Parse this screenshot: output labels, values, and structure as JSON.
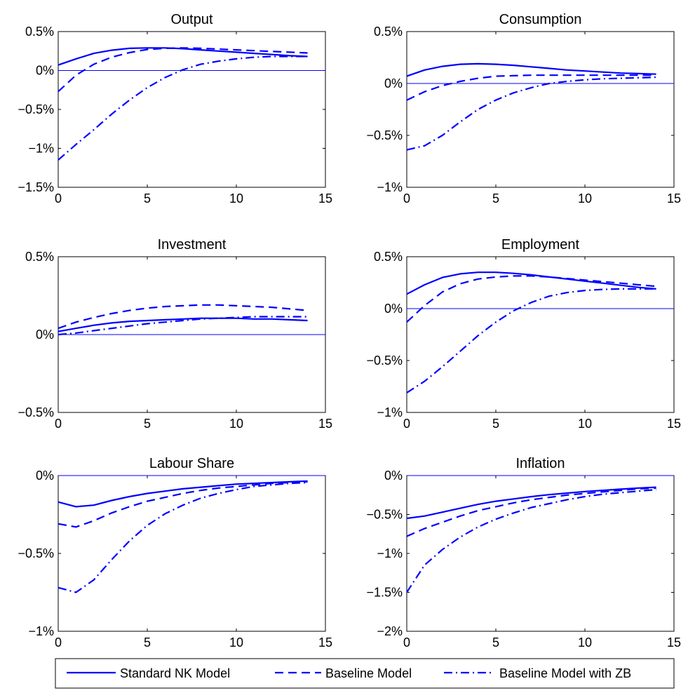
{
  "colors": {
    "series": "#0000ff",
    "axis": "#000000",
    "zero_line": "#0000ff",
    "background": "#ffffff"
  },
  "legend": {
    "placement": "bottom",
    "items": [
      {
        "label": "Standard NK Model",
        "style": "solid"
      },
      {
        "label": "Baseline Model",
        "style": "dashed"
      },
      {
        "label": "Baseline Model with ZB",
        "style": "dashdot"
      }
    ]
  },
  "chart_data": [
    {
      "type": "line",
      "title": "Output",
      "xlim": [
        0,
        15
      ],
      "ylim": [
        -1.5,
        0.5
      ],
      "xticks": [
        0,
        5,
        10,
        15
      ],
      "xtick_labels": [
        "0",
        "5",
        "10",
        "15"
      ],
      "yticks": [
        -1.5,
        -1,
        -0.5,
        0,
        0.5
      ],
      "ytick_labels": [
        "−1.5%",
        "−1%",
        "−0.5%",
        "0%",
        "0.5%"
      ],
      "zero_line": true,
      "x": [
        0,
        1,
        2,
        3,
        4,
        5,
        6,
        7,
        8,
        9,
        10,
        11,
        12,
        13,
        14
      ],
      "series": [
        {
          "name": "Standard NK Model",
          "style": "solid",
          "values": [
            0.07,
            0.15,
            0.22,
            0.26,
            0.285,
            0.29,
            0.29,
            0.28,
            0.265,
            0.25,
            0.235,
            0.22,
            0.205,
            0.19,
            0.18
          ]
        },
        {
          "name": "Baseline Model",
          "style": "dashed",
          "values": [
            -0.27,
            -0.06,
            0.08,
            0.17,
            0.23,
            0.27,
            0.285,
            0.29,
            0.285,
            0.275,
            0.265,
            0.255,
            0.245,
            0.235,
            0.225
          ]
        },
        {
          "name": "Baseline Model with ZB",
          "style": "dashdot",
          "values": [
            -1.15,
            -0.95,
            -0.76,
            -0.56,
            -0.38,
            -0.22,
            -0.09,
            0.01,
            0.08,
            0.12,
            0.15,
            0.17,
            0.18,
            0.18,
            0.18
          ]
        }
      ]
    },
    {
      "type": "line",
      "title": "Consumption",
      "xlim": [
        0,
        15
      ],
      "ylim": [
        -1,
        0.5
      ],
      "xticks": [
        0,
        5,
        10,
        15
      ],
      "xtick_labels": [
        "0",
        "5",
        "10",
        "15"
      ],
      "yticks": [
        -1,
        -0.5,
        0,
        0.5
      ],
      "ytick_labels": [
        "−1%",
        "−0.5%",
        "0%",
        "0.5%"
      ],
      "zero_line": true,
      "x": [
        0,
        1,
        2,
        3,
        4,
        5,
        6,
        7,
        8,
        9,
        10,
        11,
        12,
        13,
        14
      ],
      "series": [
        {
          "name": "Standard NK Model",
          "style": "solid",
          "values": [
            0.07,
            0.13,
            0.165,
            0.185,
            0.19,
            0.185,
            0.175,
            0.16,
            0.145,
            0.13,
            0.12,
            0.11,
            0.1,
            0.095,
            0.09
          ]
        },
        {
          "name": "Baseline Model",
          "style": "dashed",
          "values": [
            -0.16,
            -0.08,
            -0.02,
            0.02,
            0.05,
            0.07,
            0.075,
            0.08,
            0.08,
            0.08,
            0.08,
            0.08,
            0.08,
            0.08,
            0.08
          ]
        },
        {
          "name": "Baseline Model with ZB",
          "style": "dashdot",
          "values": [
            -0.64,
            -0.6,
            -0.5,
            -0.37,
            -0.25,
            -0.16,
            -0.09,
            -0.04,
            0.0,
            0.02,
            0.035,
            0.045,
            0.05,
            0.055,
            0.06
          ]
        }
      ]
    },
    {
      "type": "line",
      "title": "Investment",
      "xlim": [
        0,
        15
      ],
      "ylim": [
        -0.5,
        0.5
      ],
      "xticks": [
        0,
        5,
        10,
        15
      ],
      "xtick_labels": [
        "0",
        "5",
        "10",
        "15"
      ],
      "yticks": [
        -0.5,
        0,
        0.5
      ],
      "ytick_labels": [
        "−0.5%",
        "0%",
        "0.5%"
      ],
      "zero_line": true,
      "x": [
        0,
        1,
        2,
        3,
        4,
        5,
        6,
        7,
        8,
        9,
        10,
        11,
        12,
        13,
        14
      ],
      "series": [
        {
          "name": "Standard NK Model",
          "style": "solid",
          "values": [
            0.02,
            0.04,
            0.06,
            0.075,
            0.085,
            0.09,
            0.095,
            0.1,
            0.105,
            0.105,
            0.105,
            0.1,
            0.1,
            0.095,
            0.09
          ]
        },
        {
          "name": "Baseline Model",
          "style": "dashed",
          "values": [
            0.04,
            0.08,
            0.11,
            0.135,
            0.155,
            0.17,
            0.18,
            0.185,
            0.19,
            0.19,
            0.185,
            0.18,
            0.175,
            0.165,
            0.155
          ]
        },
        {
          "name": "Baseline Model with ZB",
          "style": "dashdot",
          "values": [
            0.0,
            0.01,
            0.025,
            0.04,
            0.055,
            0.07,
            0.08,
            0.09,
            0.1,
            0.105,
            0.11,
            0.115,
            0.115,
            0.115,
            0.115
          ]
        }
      ]
    },
    {
      "type": "line",
      "title": "Employment",
      "xlim": [
        0,
        15
      ],
      "ylim": [
        -1,
        0.5
      ],
      "xticks": [
        0,
        5,
        10,
        15
      ],
      "xtick_labels": [
        "0",
        "5",
        "10",
        "15"
      ],
      "yticks": [
        -1,
        -0.5,
        0,
        0.5
      ],
      "ytick_labels": [
        "−1%",
        "−0.5%",
        "0%",
        "0.5%"
      ],
      "zero_line": true,
      "x": [
        0,
        1,
        2,
        3,
        4,
        5,
        6,
        7,
        8,
        9,
        10,
        11,
        12,
        13,
        14
      ],
      "series": [
        {
          "name": "Standard NK Model",
          "style": "solid",
          "values": [
            0.14,
            0.23,
            0.3,
            0.335,
            0.35,
            0.35,
            0.34,
            0.325,
            0.305,
            0.285,
            0.265,
            0.245,
            0.225,
            0.205,
            0.19
          ]
        },
        {
          "name": "Baseline Model",
          "style": "dashed",
          "values": [
            -0.13,
            0.03,
            0.16,
            0.24,
            0.285,
            0.305,
            0.315,
            0.315,
            0.305,
            0.29,
            0.275,
            0.26,
            0.245,
            0.23,
            0.215
          ]
        },
        {
          "name": "Baseline Model with ZB",
          "style": "dashdot",
          "values": [
            -0.81,
            -0.7,
            -0.56,
            -0.41,
            -0.26,
            -0.13,
            -0.02,
            0.06,
            0.12,
            0.155,
            0.175,
            0.185,
            0.19,
            0.19,
            0.19
          ]
        }
      ]
    },
    {
      "type": "line",
      "title": "Labour Share",
      "xlim": [
        0,
        15
      ],
      "ylim": [
        -1,
        0
      ],
      "xticks": [
        0,
        5,
        10,
        15
      ],
      "xtick_labels": [
        "0",
        "5",
        "10",
        "15"
      ],
      "yticks": [
        -1,
        -0.5,
        0
      ],
      "ytick_labels": [
        "−1%",
        "−0.5%",
        "0%"
      ],
      "zero_line": true,
      "x": [
        0,
        1,
        2,
        3,
        4,
        5,
        6,
        7,
        8,
        9,
        10,
        11,
        12,
        13,
        14
      ],
      "series": [
        {
          "name": "Standard NK Model",
          "style": "solid",
          "values": [
            -0.17,
            -0.2,
            -0.19,
            -0.16,
            -0.135,
            -0.115,
            -0.1,
            -0.085,
            -0.075,
            -0.065,
            -0.055,
            -0.05,
            -0.045,
            -0.04,
            -0.035
          ]
        },
        {
          "name": "Baseline Model",
          "style": "dashed",
          "values": [
            -0.31,
            -0.33,
            -0.29,
            -0.24,
            -0.2,
            -0.165,
            -0.14,
            -0.115,
            -0.095,
            -0.08,
            -0.07,
            -0.06,
            -0.05,
            -0.045,
            -0.04
          ]
        },
        {
          "name": "Baseline Model with ZB",
          "style": "dashdot",
          "values": [
            -0.72,
            -0.75,
            -0.67,
            -0.54,
            -0.42,
            -0.32,
            -0.245,
            -0.19,
            -0.145,
            -0.115,
            -0.09,
            -0.07,
            -0.06,
            -0.05,
            -0.045
          ]
        }
      ]
    },
    {
      "type": "line",
      "title": "Inflation",
      "xlim": [
        0,
        15
      ],
      "ylim": [
        -2,
        0
      ],
      "xticks": [
        0,
        5,
        10,
        15
      ],
      "xtick_labels": [
        "0",
        "5",
        "10",
        "15"
      ],
      "yticks": [
        -2,
        -1.5,
        -1,
        -0.5,
        0
      ],
      "ytick_labels": [
        "−2%",
        "−1.5%",
        "−1%",
        "−0.5%",
        "0%"
      ],
      "zero_line": true,
      "x": [
        0,
        1,
        2,
        3,
        4,
        5,
        6,
        7,
        8,
        9,
        10,
        11,
        12,
        13,
        14
      ],
      "series": [
        {
          "name": "Standard NK Model",
          "style": "solid",
          "values": [
            -0.55,
            -0.52,
            -0.47,
            -0.42,
            -0.37,
            -0.33,
            -0.3,
            -0.27,
            -0.245,
            -0.225,
            -0.205,
            -0.19,
            -0.175,
            -0.16,
            -0.15
          ]
        },
        {
          "name": "Baseline Model",
          "style": "dashed",
          "values": [
            -0.78,
            -0.68,
            -0.6,
            -0.52,
            -0.45,
            -0.4,
            -0.35,
            -0.31,
            -0.28,
            -0.25,
            -0.23,
            -0.21,
            -0.19,
            -0.17,
            -0.16
          ]
        },
        {
          "name": "Baseline Model with ZB",
          "style": "dashdot",
          "values": [
            -1.5,
            -1.15,
            -0.95,
            -0.79,
            -0.66,
            -0.56,
            -0.48,
            -0.41,
            -0.36,
            -0.31,
            -0.27,
            -0.24,
            -0.22,
            -0.2,
            -0.18
          ]
        }
      ]
    }
  ]
}
